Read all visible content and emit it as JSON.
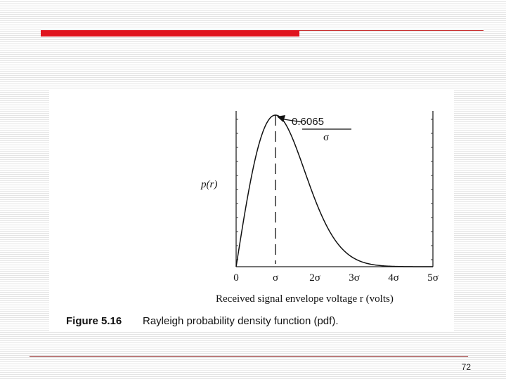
{
  "page": {
    "number": "72"
  },
  "colors": {
    "accent_bar": "#e0141e",
    "curve": "#111111"
  },
  "figure": {
    "label": "Figure 5.16",
    "caption": "Rayleigh probability density function (pdf)."
  },
  "chart_data": {
    "type": "line",
    "title": "",
    "xlabel": "Received signal envelope voltage r (volts)",
    "ylabel": "p(r)",
    "function": "rayleigh",
    "x_unit": "sigma",
    "xlim": [
      0,
      5
    ],
    "ylim": [
      0,
      0.6065
    ],
    "x_ticks": [
      {
        "value": 0,
        "label": "0"
      },
      {
        "value": 1,
        "label": "σ"
      },
      {
        "value": 2,
        "label": "2σ"
      },
      {
        "value": 3,
        "label": "3σ"
      },
      {
        "value": 4,
        "label": "4σ"
      },
      {
        "value": 5,
        "label": "5σ"
      }
    ],
    "series": [
      {
        "x": [
          0,
          0.25,
          0.5,
          0.75,
          1.0,
          1.25,
          1.5,
          1.75,
          2.0,
          2.25,
          2.5,
          2.75,
          3.0,
          3.25,
          3.5,
          3.75,
          4.0,
          4.25,
          4.5,
          4.75,
          5.0
        ],
        "y": [
          0,
          0.242,
          0.441,
          0.566,
          0.607,
          0.572,
          0.487,
          0.379,
          0.271,
          0.179,
          0.11,
          0.063,
          0.033,
          0.016,
          0.0077,
          0.0033,
          0.0013,
          0.0005,
          0.0002,
          0.0001,
          2e-05
        ]
      }
    ],
    "annotation": {
      "x": 1,
      "y": 0.6065,
      "numerator": "0.6065",
      "denominator": "σ"
    }
  }
}
